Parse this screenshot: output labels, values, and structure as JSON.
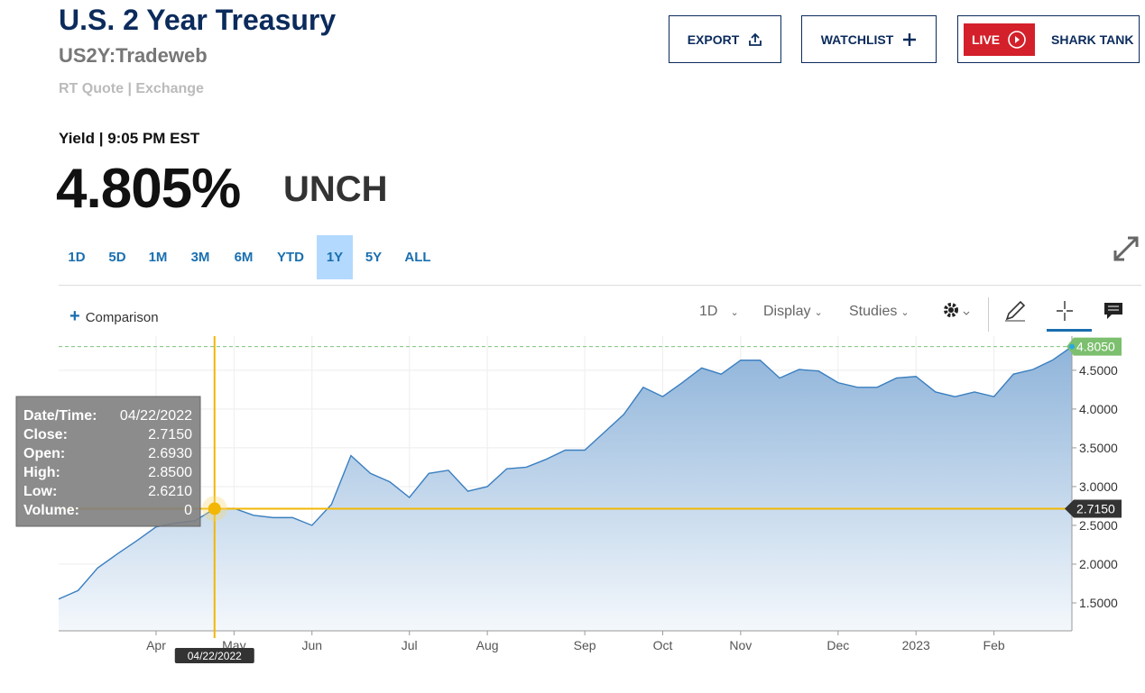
{
  "header": {
    "title": "U.S. 2 Year Treasury",
    "symbol": "US2Y:Tradeweb",
    "source": "RT Quote | Exchange"
  },
  "buttons": {
    "export": "EXPORT",
    "watchlist": "WATCHLIST",
    "live": "LIVE",
    "show": "SHARK TANK"
  },
  "quote": {
    "label": "Yield | 9:05 PM EST",
    "price": "4.805%",
    "change": "UNCH"
  },
  "ranges": {
    "items": [
      "1D",
      "5D",
      "1M",
      "3M",
      "6M",
      "YTD",
      "1Y",
      "5Y",
      "ALL"
    ],
    "active_index": 6
  },
  "toolbar": {
    "comparison": "Comparison",
    "interval": "1D",
    "display": "Display",
    "studies": "Studies"
  },
  "chart_data": {
    "type": "area",
    "categories": [
      null,
      null,
      null,
      null,
      null,
      "Apr",
      null,
      null,
      null,
      "May",
      null,
      null,
      null,
      "Jun",
      null,
      null,
      null,
      null,
      "Jul",
      null,
      null,
      null,
      "Aug",
      null,
      null,
      null,
      null,
      "Sep",
      null,
      null,
      null,
      "Oct",
      null,
      null,
      null,
      "Nov",
      null,
      null,
      null,
      null,
      "Dec",
      null,
      null,
      null,
      "2023",
      null,
      null,
      null,
      "Feb",
      null,
      null,
      null,
      null
    ],
    "series": [
      {
        "name": "US2Y",
        "color": "#3a7fc0",
        "values": [
          1.55,
          1.66,
          1.95,
          2.13,
          2.3,
          2.48,
          2.53,
          2.56,
          2.715,
          2.72,
          2.63,
          2.6,
          2.6,
          2.5,
          2.77,
          3.4,
          3.17,
          3.06,
          2.86,
          3.17,
          3.21,
          2.94,
          3.0,
          3.23,
          3.25,
          3.35,
          3.47,
          3.47,
          3.7,
          3.93,
          4.28,
          4.16,
          4.34,
          4.53,
          4.45,
          4.63,
          4.63,
          4.4,
          4.51,
          4.49,
          4.34,
          4.28,
          4.28,
          4.4,
          4.42,
          4.22,
          4.16,
          4.22,
          4.16,
          4.45,
          4.51,
          4.63,
          4.805
        ]
      }
    ],
    "ylim": [
      1.14,
      4.94
    ],
    "yticks": [
      {
        "value": 1.5,
        "label": "1.5000"
      },
      {
        "value": 2,
        "label": "2.0000"
      },
      {
        "value": 2.5,
        "label": "2.5000"
      },
      {
        "value": 3,
        "label": "3.0000"
      },
      {
        "value": 3.5,
        "label": "3.5000"
      },
      {
        "value": 4,
        "label": "4.0000"
      },
      {
        "value": 4.5,
        "label": "4.5000"
      }
    ],
    "grid": true,
    "last_label": "4.8050",
    "crosshair_index": 8,
    "tooltip": [
      [
        "Date/Time:",
        "04/22/2022"
      ],
      [
        "Close:",
        "2.7150"
      ],
      [
        "Open:",
        "2.6930"
      ],
      [
        "High:",
        "2.8500"
      ],
      [
        "Low:",
        "2.6210"
      ],
      [
        "Volume:",
        "0"
      ]
    ]
  }
}
